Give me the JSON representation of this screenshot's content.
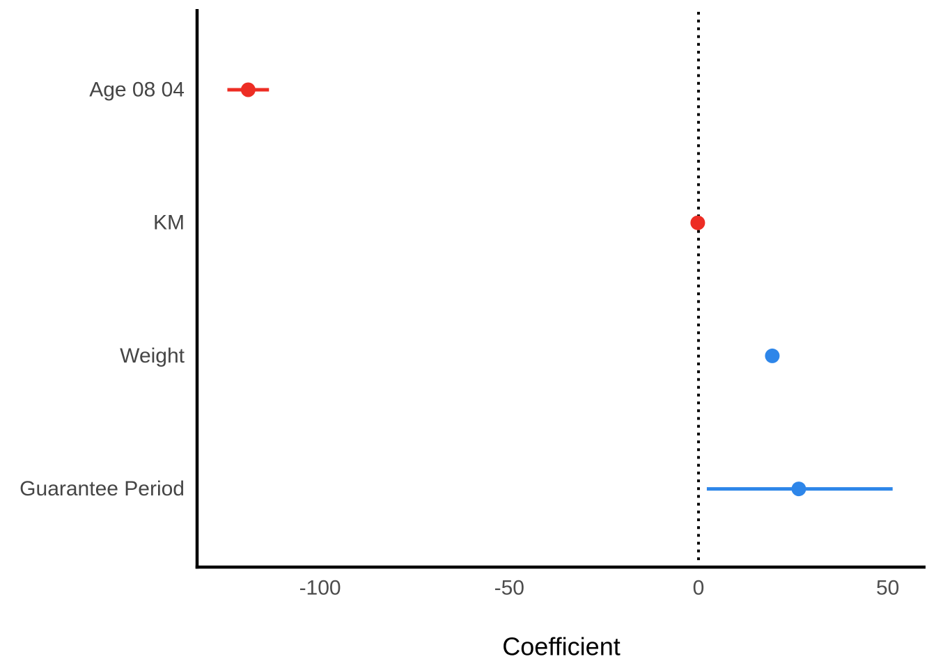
{
  "figure": {
    "background": "#ffffff"
  },
  "chart_data": {
    "type": "scatter",
    "variant": "coefficient_dot_whisker",
    "title": "",
    "xlabel": "Coefficient",
    "ylabel": "",
    "xlim": [
      -132.5,
      60
    ],
    "x_ticks": [
      {
        "value": -100,
        "label": "-100"
      },
      {
        "value": -50,
        "label": "-50"
      },
      {
        "value": 0,
        "label": "0"
      },
      {
        "value": 50,
        "label": "50"
      }
    ],
    "reference_line": {
      "x": 0,
      "style": "dotted",
      "color": "#000000"
    },
    "rows": [
      {
        "label": "Age 08 04",
        "estimate": -119.0,
        "ci_low": -124.5,
        "ci_high": -113.5,
        "group": "negative",
        "color": "#ed2d24"
      },
      {
        "label": "KM",
        "estimate": -0.2,
        "ci_low": -0.4,
        "ci_high": 0.0,
        "group": "negative",
        "color": "#ed2d24"
      },
      {
        "label": "Weight",
        "estimate": 19.5,
        "ci_low": 18.3,
        "ci_high": 20.7,
        "group": "positive",
        "color": "#2e86e9"
      },
      {
        "label": "Guarantee Period",
        "estimate": 26.5,
        "ci_low": 2.2,
        "ci_high": 51.3,
        "group": "positive",
        "color": "#2e86e9"
      }
    ],
    "colors": {
      "negative": "#ed2d24",
      "positive": "#2e86e9"
    },
    "axis_color": "#000000",
    "tick_label_color": "#4d4d4d",
    "category_label_color": "#454545",
    "axis_title_color": "#000000",
    "grid": false,
    "legend": false
  }
}
